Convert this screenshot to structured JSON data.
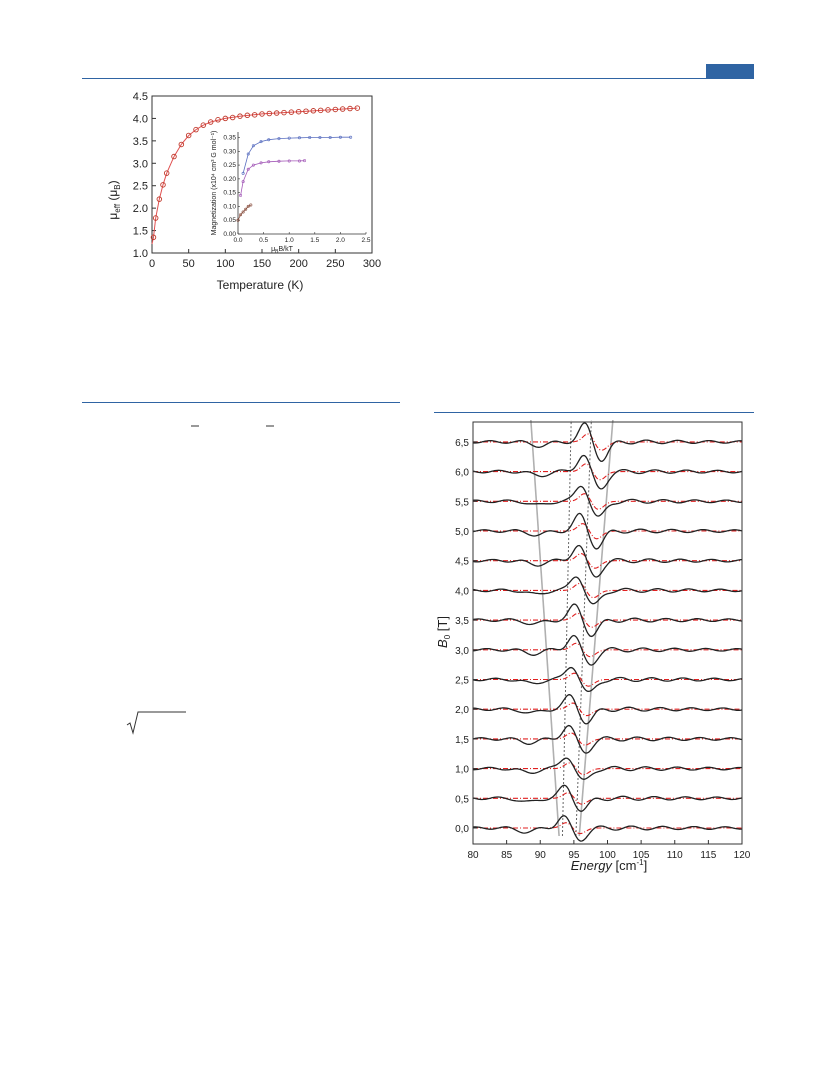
{
  "page": {
    "accent_color": "#2f64a3"
  },
  "chart_data": [
    {
      "type": "scatter",
      "xlabel": "Temperature (K)",
      "ylabel": "μ_eff (μ_B)",
      "ylabel_main": "μ",
      "ylabel_sub1": "eff",
      "ylabel_mid": " (μ",
      "ylabel_sub2": "B",
      "ylabel_end": ")",
      "xlim": [
        0,
        300
      ],
      "ylim": [
        1.0,
        4.5
      ],
      "xticks": [
        "0",
        "50",
        "100",
        "150",
        "200",
        "250",
        "300"
      ],
      "yticks": [
        "1.0",
        "1.5",
        "2.0",
        "2.5",
        "3.0",
        "3.5",
        "4.0",
        "4.5"
      ],
      "series": [
        {
          "kind": "points",
          "marker": "open-circle",
          "color": "#c0392b",
          "x": [
            2,
            5,
            10,
            15,
            20,
            30,
            40,
            50,
            60,
            70,
            80,
            90,
            100,
            110,
            120,
            130,
            140,
            150,
            160,
            170,
            180,
            190,
            200,
            210,
            220,
            230,
            240,
            250,
            260,
            270,
            280
          ],
          "y": [
            1.35,
            1.78,
            2.2,
            2.52,
            2.78,
            3.15,
            3.42,
            3.62,
            3.75,
            3.85,
            3.92,
            3.97,
            4.0,
            4.02,
            4.05,
            4.07,
            4.08,
            4.1,
            4.11,
            4.12,
            4.13,
            4.14,
            4.15,
            4.16,
            4.17,
            4.18,
            4.19,
            4.2,
            4.21,
            4.22,
            4.23
          ]
        },
        {
          "kind": "fit-line",
          "color": "#e05050",
          "x": [
            0,
            2,
            5,
            10,
            15,
            20,
            30,
            40,
            50,
            60,
            70,
            80,
            100,
            120,
            150,
            200,
            250,
            280
          ],
          "y": [
            1.2,
            1.35,
            1.78,
            2.2,
            2.52,
            2.78,
            3.15,
            3.42,
            3.62,
            3.75,
            3.85,
            3.92,
            4.0,
            4.05,
            4.1,
            4.15,
            4.2,
            4.23
          ]
        }
      ],
      "inset": {
        "type": "scatter",
        "xlabel": "μ_B B/kT",
        "xlabel_main": "μ",
        "xlabel_sub": "B",
        "xlabel_end": "B/kT",
        "ylabel": "Magnetization (x10⁴ cm³ G mol⁻¹)",
        "xlim": [
          0,
          2.5
        ],
        "ylim": [
          0,
          0.37
        ],
        "xticks": [
          "0.0",
          "0.5",
          "1.0",
          "1.5",
          "2.0",
          "2.5"
        ],
        "yticks": [
          "0.00",
          "0.05",
          "0.10",
          "0.15",
          "0.20",
          "0.25",
          "0.30",
          "0.35"
        ],
        "series": [
          {
            "color": "#5a6fc0",
            "x": [
              0.1,
              0.2,
              0.3,
              0.45,
              0.6,
              0.8,
              1.0,
              1.2,
              1.4,
              1.6,
              1.8,
              2.0,
              2.2
            ],
            "y": [
              0.22,
              0.29,
              0.32,
              0.335,
              0.342,
              0.346,
              0.348,
              0.349,
              0.35,
              0.35,
              0.35,
              0.351,
              0.351
            ]
          },
          {
            "color": "#a45bb8",
            "x": [
              0.05,
              0.1,
              0.2,
              0.3,
              0.45,
              0.6,
              0.8,
              1.0,
              1.2,
              1.3
            ],
            "y": [
              0.14,
              0.19,
              0.235,
              0.25,
              0.258,
              0.262,
              0.264,
              0.265,
              0.265,
              0.266
            ]
          },
          {
            "color": "#8a5040",
            "x": [
              0.0,
              0.05,
              0.1,
              0.15,
              0.2,
              0.25
            ],
            "y": [
              0.05,
              0.07,
              0.08,
              0.09,
              0.1,
              0.105
            ]
          }
        ]
      }
    },
    {
      "type": "line",
      "xlabel": "Energy [cm⁻¹]",
      "xlabel_main": "Energy",
      "xlabel_unit": " [cm",
      "xlabel_sup": "-1",
      "xlabel_end": "]",
      "ylabel": "B_0 [T]",
      "ylabel_main": "B",
      "ylabel_sub": "0",
      "ylabel_end": " [T]",
      "xlim": [
        80,
        120
      ],
      "xticks": [
        "80",
        "85",
        "90",
        "95",
        "100",
        "105",
        "110",
        "115",
        "120"
      ],
      "field_labels": [
        "0,0",
        "0,5",
        "1,0",
        "1,5",
        "2,0",
        "2,5",
        "3,0",
        "3,5",
        "4,0",
        "4,5",
        "5,0",
        "5,5",
        "6,0",
        "6,5"
      ],
      "field_values": [
        0.0,
        0.5,
        1.0,
        1.5,
        2.0,
        2.5,
        3.0,
        3.5,
        4.0,
        4.5,
        5.0,
        5.5,
        6.0,
        6.5
      ],
      "series": [
        {
          "name": "",
          "kind": "measured",
          "color": "#222222"
        },
        {
          "name": "",
          "kind": "simulated",
          "color": "#e02020",
          "style": "dash-dot"
        }
      ],
      "guide_lines": [
        {
          "style": "solid",
          "color": "#b0b0b0",
          "x_at_0T": 92.8,
          "x_at_65T": 88.6
        },
        {
          "style": "solid",
          "color": "#b0b0b0",
          "x_at_0T": 95.8,
          "x_at_65T": 100.8
        },
        {
          "style": "dotted",
          "color": "#666666",
          "x_at_0T": 93.3,
          "x_at_65T": 94.6
        },
        {
          "style": "dotted",
          "color": "#666666",
          "x_at_0T": 95.3,
          "x_at_65T": 97.6
        }
      ]
    }
  ]
}
